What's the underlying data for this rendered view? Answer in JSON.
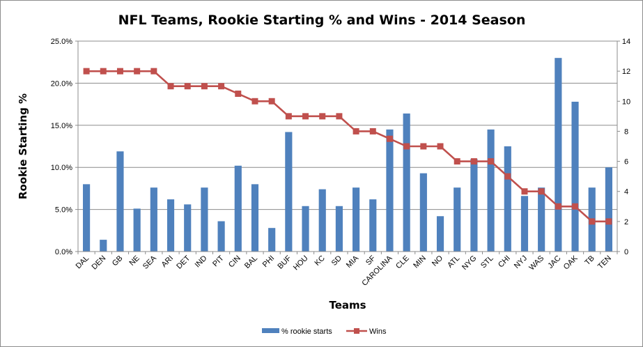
{
  "chart_data": {
    "type": "bar",
    "title": "NFL Teams, Rookie Starting % and Wins - 2014 Season",
    "xlabel": "Teams",
    "ylabel": "Rookie Starting %",
    "y2label": "",
    "categories": [
      "DAL",
      "DEN",
      "GB",
      "NE",
      "SEA",
      "ARI",
      "DET",
      "IND",
      "PIT",
      "CIN",
      "BAL",
      "PHI",
      "BUF",
      "HOU",
      "KC",
      "SD",
      "MIA",
      "SF",
      "CAROLINA",
      "CLE",
      "MIN",
      "NO",
      "ATL",
      "NYG",
      "STL",
      "CHI",
      "NYJ",
      "WAS",
      "JAC",
      "OAK",
      "TB",
      "TEN"
    ],
    "series": [
      {
        "name": "% rookie starts",
        "type": "bar",
        "axis": "left",
        "color": "#4f81bd",
        "values": [
          8.0,
          1.4,
          11.9,
          5.1,
          7.6,
          6.2,
          5.6,
          7.6,
          3.6,
          10.2,
          8.0,
          2.8,
          14.2,
          5.4,
          7.4,
          5.4,
          7.6,
          6.2,
          14.5,
          16.4,
          9.3,
          4.2,
          7.6,
          11.0,
          14.5,
          12.5,
          6.6,
          7.6,
          23.0,
          17.8,
          7.6,
          10.0
        ]
      },
      {
        "name": "Wins",
        "type": "line",
        "axis": "right",
        "color": "#c0504d",
        "values": [
          12,
          12,
          12,
          12,
          12,
          11,
          11,
          11,
          11,
          10.5,
          10,
          10,
          9,
          9,
          9,
          9,
          8,
          8,
          7.5,
          7,
          7,
          7,
          6,
          6,
          6,
          5,
          4,
          4,
          3,
          3,
          2,
          2
        ]
      }
    ],
    "ylim": [
      0,
      25
    ],
    "yticks": [
      "0.0%",
      "5.0%",
      "10.0%",
      "15.0%",
      "20.0%",
      "25.0%"
    ],
    "y2lim": [
      0,
      14
    ],
    "y2ticks": [
      "0",
      "2",
      "4",
      "6",
      "8",
      "10",
      "12",
      "14"
    ],
    "grid": true,
    "legend": "bottom"
  }
}
